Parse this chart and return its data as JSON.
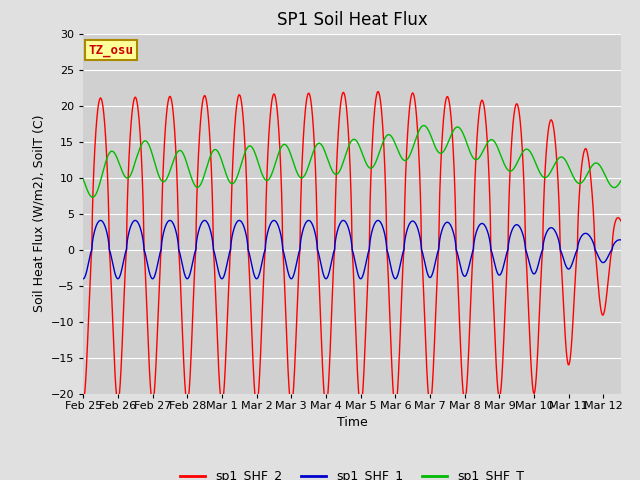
{
  "title": "SP1 Soil Heat Flux",
  "xlabel": "Time",
  "ylabel": "Soil Heat Flux (W/m2), SoilT (C)",
  "ylim": [
    -20,
    30
  ],
  "xlim_start": 0,
  "xlim_end": 15.5,
  "tick_labels": [
    "Feb 25",
    "Feb 26",
    "Feb 27",
    "Feb 28",
    "Mar 1",
    "Mar 2",
    "Mar 3",
    "Mar 4",
    "Mar 5",
    "Mar 6",
    "Mar 7",
    "Mar 8",
    "Mar 9",
    "Mar 10",
    "Mar 11",
    "Mar 12"
  ],
  "color_shf2": "#ff0000",
  "color_shf1": "#0000cc",
  "color_shft": "#00bb00",
  "fig_bg_color": "#e0e0e0",
  "plot_bg_color": "#d0d0d0",
  "annotation_text": "TZ_osu",
  "annotation_color": "#cc0000",
  "annotation_bg": "#ffff99",
  "legend_labels": [
    "sp1_SHF_2",
    "sp1_SHF_1",
    "sp1_SHF_T"
  ],
  "title_fontsize": 12,
  "label_fontsize": 9,
  "tick_fontsize": 8,
  "linewidth": 1.0
}
